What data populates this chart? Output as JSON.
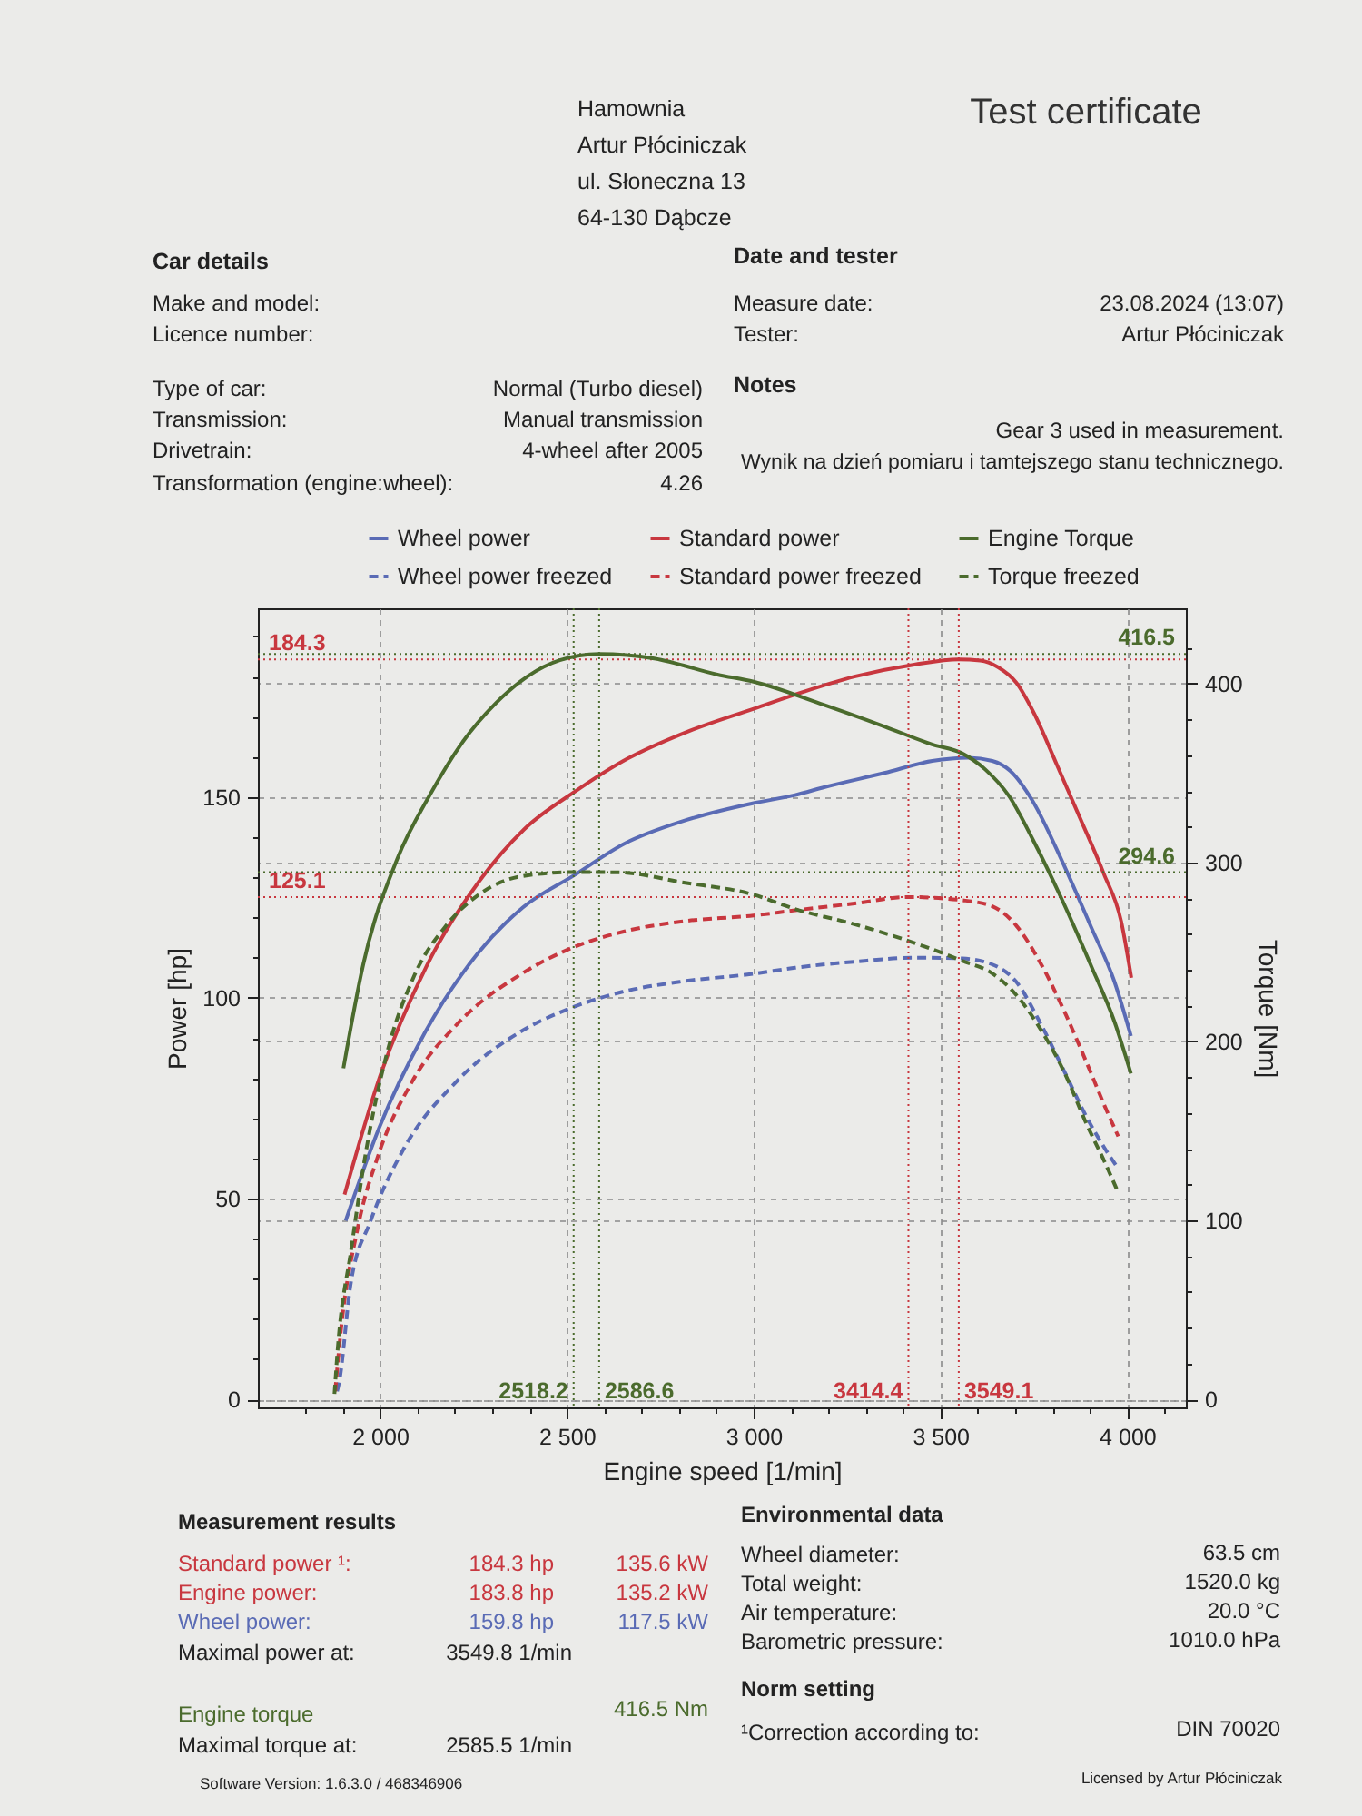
{
  "chart_data": {
    "type": "line",
    "title": "Test certificate",
    "xlabel": "Engine speed [1/min]",
    "ylabel": "Power [hp]",
    "y2label": "Torque [Nm]",
    "xlim": [
      1673,
      4157
    ],
    "ylim": [
      -2,
      197
    ],
    "y2lim": [
      -4.5,
      442
    ],
    "xticks": [
      {
        "value": 1800,
        "label": null
      },
      {
        "value": 1900,
        "label": null
      },
      {
        "value": 2000,
        "label": "2 000"
      },
      {
        "value": 2100,
        "label": null
      },
      {
        "value": 2200,
        "label": null
      },
      {
        "value": 2300,
        "label": null
      },
      {
        "value": 2400,
        "label": null
      },
      {
        "value": 2500,
        "label": "2 500"
      },
      {
        "value": 2600,
        "label": null
      },
      {
        "value": 2700,
        "label": null
      },
      {
        "value": 2800,
        "label": null
      },
      {
        "value": 2900,
        "label": null
      },
      {
        "value": 3000,
        "label": "3 000"
      },
      {
        "value": 3100,
        "label": null
      },
      {
        "value": 3200,
        "label": null
      },
      {
        "value": 3300,
        "label": null
      },
      {
        "value": 3400,
        "label": null
      },
      {
        "value": 3500,
        "label": "3 500"
      },
      {
        "value": 3600,
        "label": null
      },
      {
        "value": 3700,
        "label": null
      },
      {
        "value": 3800,
        "label": null
      },
      {
        "value": 3900,
        "label": null
      },
      {
        "value": 4000,
        "label": "4 000"
      },
      {
        "value": 4100,
        "label": null
      }
    ],
    "yticks": [
      0,
      {
        "value": 10,
        "label": null
      },
      {
        "value": 20,
        "label": null
      },
      {
        "value": 30,
        "label": null
      },
      {
        "value": 40,
        "label": null
      },
      50,
      {
        "value": 60,
        "label": null
      },
      {
        "value": 70,
        "label": null
      },
      {
        "value": 80,
        "label": null
      },
      {
        "value": 90,
        "label": null
      },
      100,
      {
        "value": 110,
        "label": null
      },
      {
        "value": 120,
        "label": null
      },
      {
        "value": 130,
        "label": null
      },
      {
        "value": 140,
        "label": null
      },
      150,
      {
        "value": 160,
        "label": null
      },
      {
        "value": 170,
        "label": null
      },
      {
        "value": 180,
        "label": null
      },
      {
        "value": 190,
        "label": null
      }
    ],
    "y2ticks": [
      0,
      {
        "value": 20,
        "label": null
      },
      {
        "value": 40,
        "label": null
      },
      {
        "value": 60,
        "label": null
      },
      {
        "value": 80,
        "label": null
      },
      100,
      {
        "value": 120,
        "label": null
      },
      {
        "value": 140,
        "label": null
      },
      {
        "value": 160,
        "label": null
      },
      {
        "value": 180,
        "label": null
      },
      200,
      {
        "value": 220,
        "label": null
      },
      {
        "value": 240,
        "label": null
      },
      {
        "value": 260,
        "label": null
      },
      {
        "value": 280,
        "label": null
      },
      300,
      {
        "value": 320,
        "label": null
      },
      {
        "value": 340,
        "label": null
      },
      {
        "value": 360,
        "label": null
      },
      {
        "value": 380,
        "label": null
      },
      400,
      {
        "value": 420,
        "label": null
      }
    ],
    "grid": true,
    "legend": "top",
    "series": [
      {
        "name": "Wheel power",
        "color": "#5a6bb5",
        "line_style": "solid",
        "x": [
          1908,
          1997,
          2121,
          2261,
          2382,
          2519,
          2656,
          2810,
          3000,
          3111,
          3191,
          3350,
          3478,
          3575,
          3639,
          3687,
          3747,
          3826,
          3904,
          3966,
          4010
        ],
        "values": [
          44.5,
          67.5,
          91.5,
          111,
          122.5,
          130.5,
          138.5,
          144,
          148.5,
          150.5,
          152.5,
          156,
          159,
          159.8,
          159,
          156.5,
          149,
          134,
          117.5,
          104,
          90.5
        ]
      },
      {
        "name": "Standard power",
        "color": "#c8373f",
        "line_style": "solid",
        "x": [
          1905,
          2000,
          2125,
          2265,
          2386,
          2524,
          2661,
          2815,
          3000,
          3110,
          3270,
          3430,
          3549.1,
          3607,
          3655,
          3703,
          3750,
          3812,
          3875,
          3937,
          3984,
          4011
        ],
        "values": [
          51,
          80.5,
          108,
          129,
          142,
          151.5,
          159.5,
          166,
          172,
          175.5,
          180,
          183,
          184.3,
          184,
          182.3,
          178.5,
          171,
          158,
          144.5,
          131,
          119,
          105
        ]
      },
      {
        "name": "Engine Torque",
        "color": "#4b6b2d",
        "line_style": "solid",
        "axis": "y2",
        "x": [
          1902,
          1955,
          2046,
          2134,
          2220,
          2310,
          2395,
          2481,
          2586.6,
          2734,
          2903,
          3000,
          3189,
          3350,
          3478,
          3558,
          3620,
          3684,
          3747,
          3826,
          3904,
          3966,
          4010
        ],
        "values": [
          185,
          243,
          302,
          338,
          367,
          389,
          404,
          413,
          416.5,
          414,
          405,
          401,
          388,
          376,
          366,
          361,
          352,
          337,
          313,
          279,
          242,
          211,
          182
        ]
      },
      {
        "name": "Wheel power freezed",
        "color": "#5a6bb5",
        "line_style": "dashed",
        "x": [
          1885,
          1890,
          1921,
          1975,
          2064,
          2203,
          2375,
          2512,
          2649,
          2802,
          3000,
          3111,
          3270,
          3431,
          3559,
          3639,
          3703,
          3766,
          3830,
          3893,
          3940,
          3976
        ],
        "values": [
          2,
          4,
          28.5,
          44.5,
          62.5,
          79,
          91.5,
          97.5,
          101.5,
          104,
          106,
          107.5,
          109,
          110,
          109.8,
          108.3,
          104,
          94,
          82,
          70,
          62.5,
          57.5
        ]
      },
      {
        "name": "Standard power freezed",
        "color": "#c8373f",
        "line_style": "dashed",
        "x": [
          1880,
          1895,
          1941,
          1996,
          2085,
          2207,
          2379,
          2515,
          2652,
          2805,
          3000,
          3111,
          3270,
          3414.4,
          3559,
          3639,
          3703,
          3766,
          3830,
          3893,
          3940,
          3976
        ],
        "values": [
          2,
          17,
          43,
          61,
          79,
          93.5,
          106,
          112.5,
          116.5,
          119,
          120.5,
          121.8,
          123.5,
          125.1,
          124.3,
          122.8,
          118,
          109,
          97,
          83.5,
          73,
          65.5
        ]
      },
      {
        "name": "Torque freezed",
        "color": "#4b6b2d",
        "line_style": "dashed",
        "axis": "y2",
        "x": [
          1878,
          1887,
          1923,
          1962,
          2018,
          2090,
          2178,
          2264,
          2384,
          2518.2,
          2638,
          2807,
          3000,
          3111,
          3270,
          3431,
          3559,
          3639,
          3703,
          3766,
          3830,
          3893,
          3940,
          3976
        ],
        "values": [
          3,
          29,
          84,
          138,
          193,
          236,
          265,
          282,
          292.5,
          294.6,
          294.5,
          289,
          282,
          274,
          265.5,
          255,
          245,
          238,
          226,
          207.5,
          183.5,
          153,
          132.5,
          115.5
        ]
      }
    ],
    "ref_lines": [
      {
        "axis": "y",
        "value": 184.3,
        "label": "184.3",
        "color": "#c8373f",
        "line_style": "dotted"
      },
      {
        "axis": "y",
        "value": 125.1,
        "label": "125.1",
        "color": "#c8373f",
        "line_style": "dotted"
      },
      {
        "axis": "y2",
        "value": 416.5,
        "label": "416.5",
        "color": "#4b6b2d",
        "line_style": "dotted"
      },
      {
        "axis": "y2",
        "value": 294.6,
        "label": "294.6",
        "color": "#4b6b2d",
        "line_style": "dotted"
      },
      {
        "axis": "x",
        "value": 2518.2,
        "label": "2518.2",
        "color": "#4b6b2d",
        "line_style": "dotted"
      },
      {
        "axis": "x",
        "value": 2586.6,
        "label": "2586.6",
        "color": "#4b6b2d",
        "line_style": "dotted"
      },
      {
        "axis": "x",
        "value": 3414.4,
        "label": "3414.4",
        "color": "#c8373f",
        "line_style": "dotted"
      },
      {
        "axis": "x",
        "value": 3549.1,
        "label": "3549.1",
        "color": "#c8373f",
        "line_style": "dotted"
      }
    ],
    "annotations": [
      "Hamownia",
      "Artur Płóciniczak",
      "ul. Słoneczna 13",
      "64-130 Dąbcze",
      "Car details",
      "Make and model:",
      "Licence number:",
      "Type of car:",
      "Normal (Turbo diesel)",
      "Transmission:",
      "Manual transmission",
      "Drivetrain:",
      "4-wheel after 2005",
      "Transformation (engine:wheel):",
      "4.26",
      "Date and tester",
      "Measure date:",
      "23.08.2024 (13:07)",
      "Tester:",
      "Artur Płóciniczak",
      "Notes",
      "Gear 3 used in measurement.",
      "Wynik na dzień pomiaru i tamtejszego stanu technicznego.",
      "Measurement results",
      "Standard power ¹:",
      "184.3 hp",
      "135.6 kW",
      "Engine power:",
      "183.8 hp",
      "135.2 kW",
      "Wheel power:",
      "159.8 hp",
      "117.5 kW",
      "Maximal power at:",
      "3549.8 1/min",
      "Engine torque",
      "416.5 Nm",
      "Maximal torque at:",
      "2585.5 1/min",
      "Environmental data",
      "Wheel diameter:",
      "63.5 cm",
      "Total weight:",
      "1520.0 kg",
      "Air temperature:",
      "20.0 °C",
      "Barometric pressure:",
      "1010.0 hPa",
      "Norm setting",
      "¹Correction according to:",
      "DIN 70020",
      "Software Version: 1.6.3.0 / 468346906",
      "Licensed by Artur Płóciniczak"
    ]
  }
}
